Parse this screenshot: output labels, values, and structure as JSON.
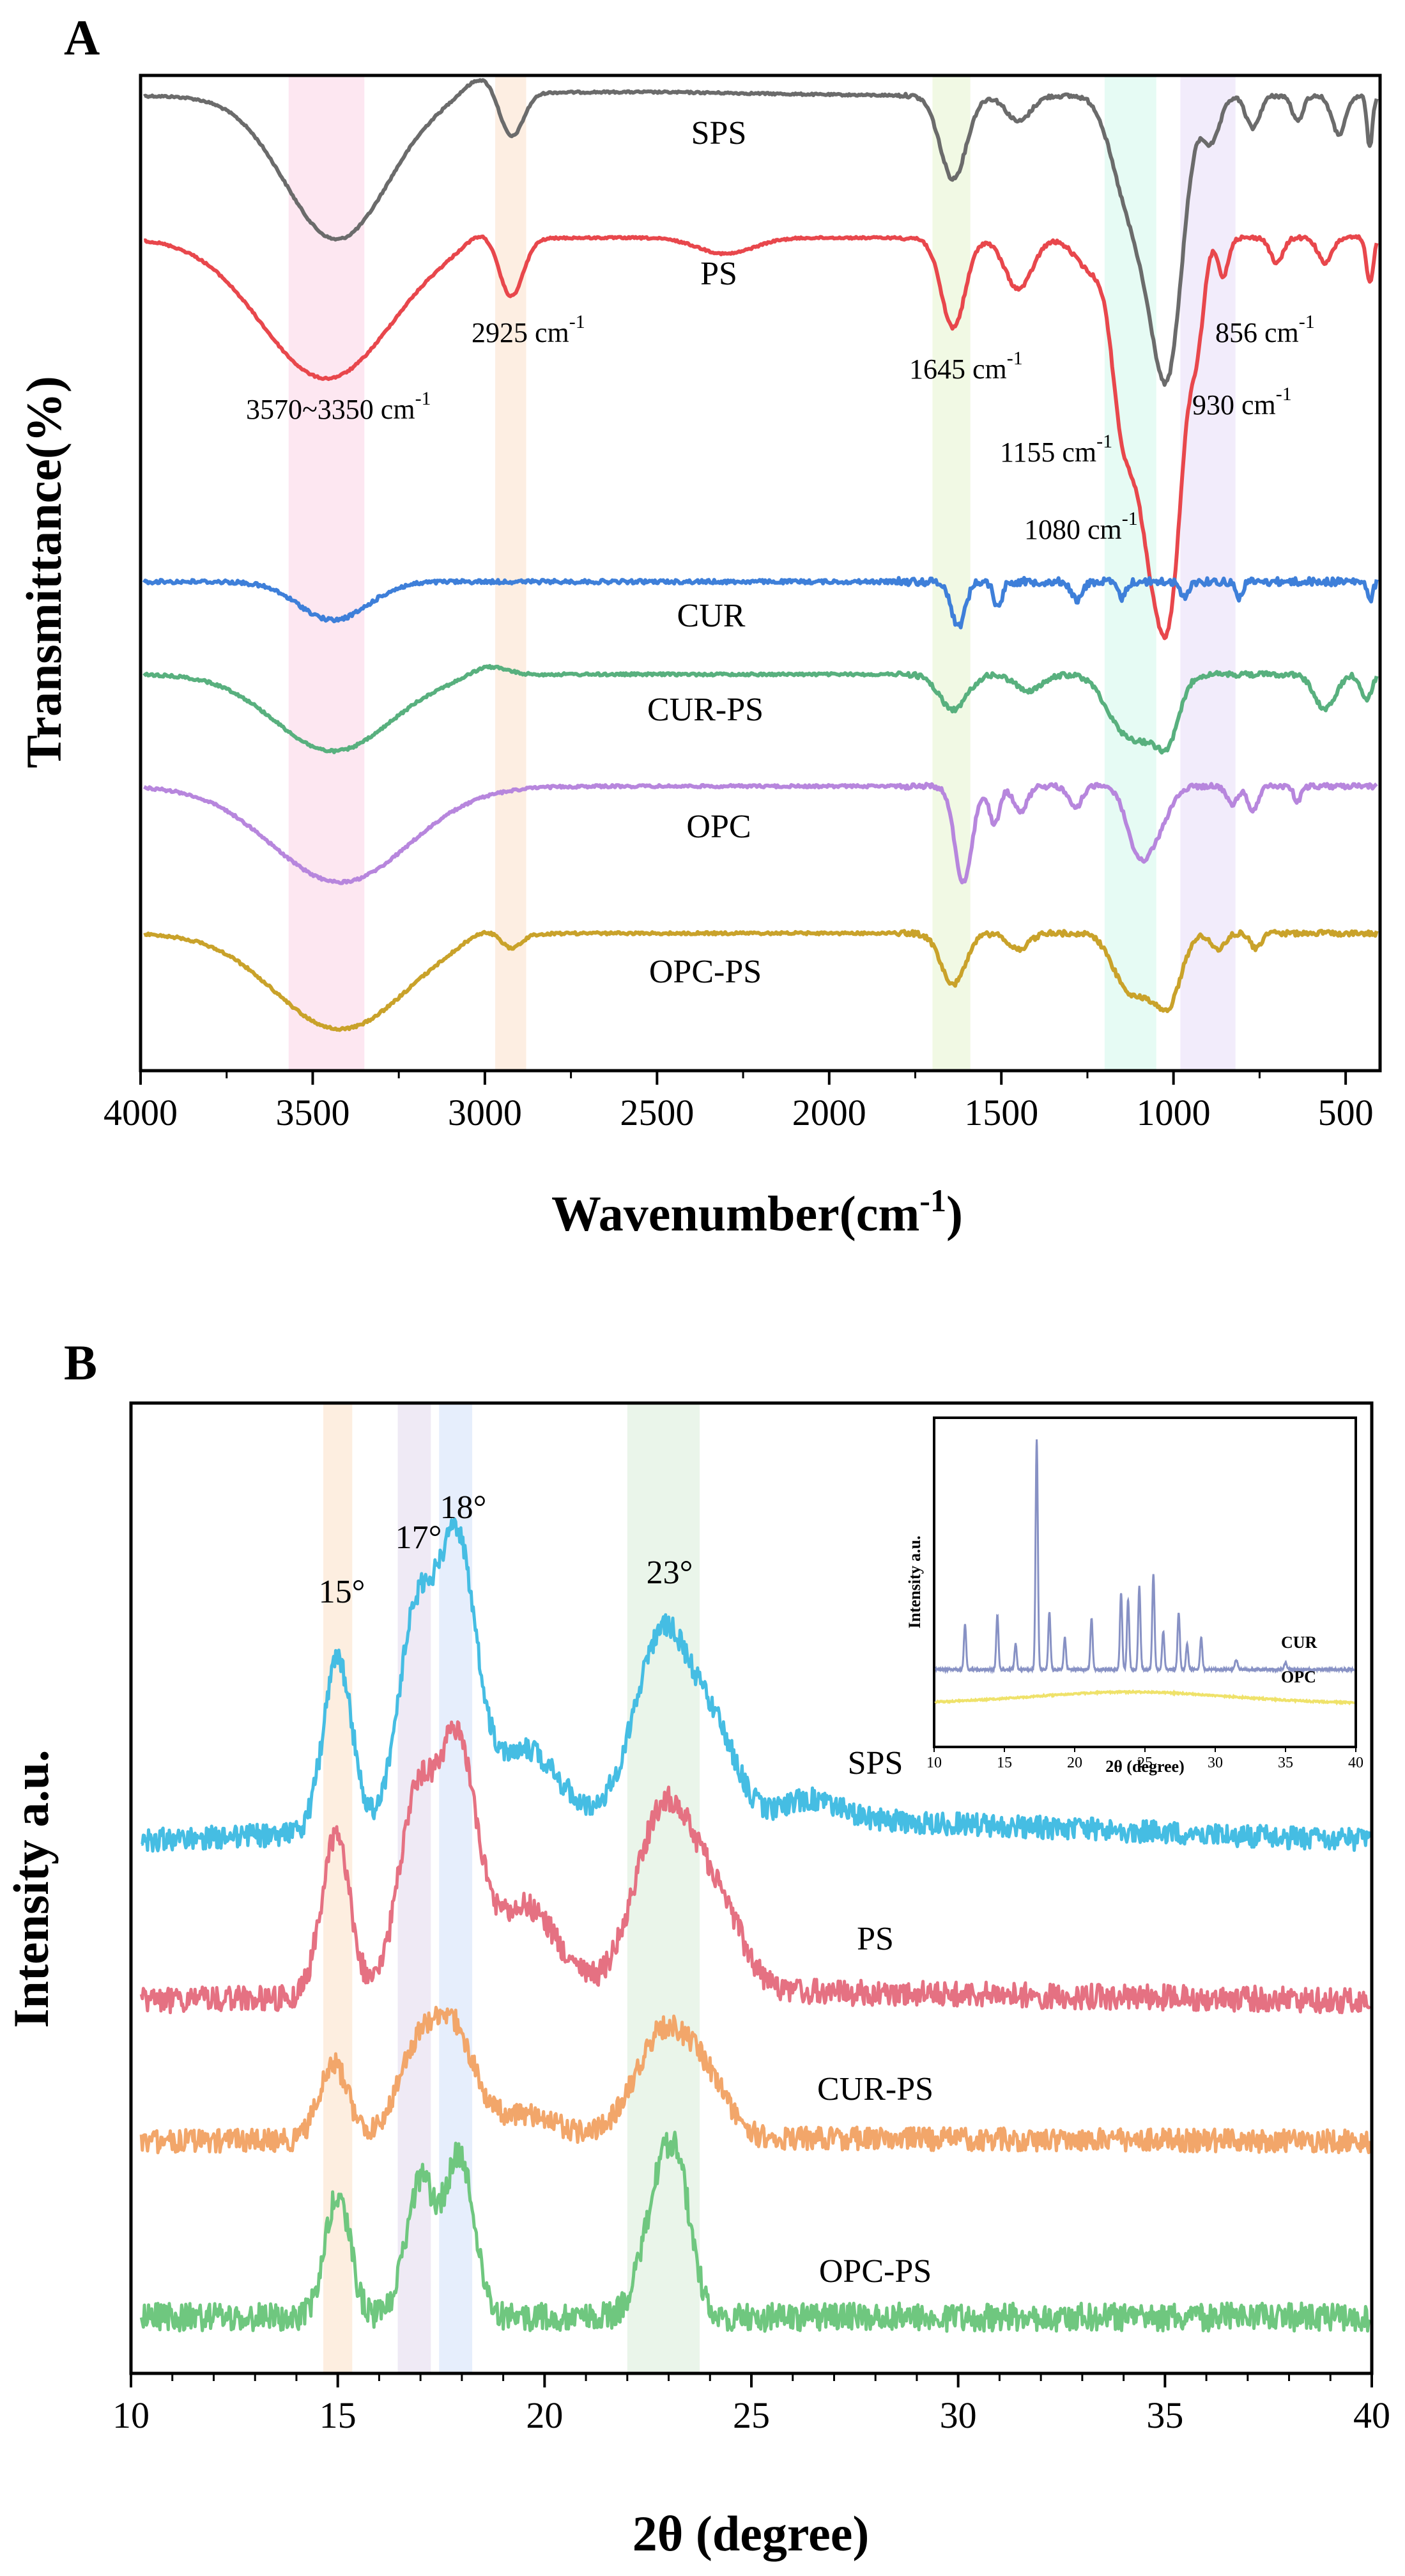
{
  "chart_data": [
    {
      "panel": "A",
      "type": "line",
      "xlabel": "Wavenumber(cm",
      "xlabel_sup": "-1",
      "xlabel_end": ")",
      "ylabel": "Transmittance(%)",
      "xlim": [
        4000,
        400
      ],
      "xticks": [
        "4000",
        "3500",
        "3000",
        "2500",
        "2000",
        "1500",
        "1000",
        "500"
      ],
      "xtick_values": [
        4000,
        3500,
        3000,
        2500,
        2000,
        1500,
        1000,
        500
      ],
      "bands": [
        {
          "from": 3570,
          "to": 3350,
          "color": "#fde7f1"
        },
        {
          "from": 2970,
          "to": 2880,
          "color": "#fdeee2"
        },
        {
          "from": 1700,
          "to": 1590,
          "color": "#f1f9e4"
        },
        {
          "from": 1200,
          "to": 1050,
          "color": "#e6fbf4"
        },
        {
          "from": 980,
          "to": 820,
          "color": "#f2ecfb"
        }
      ],
      "series": [
        {
          "name": "SPS",
          "color": "#6b6b6b"
        },
        {
          "name": "PS",
          "color": "#e8474c"
        },
        {
          "name": "CUR",
          "color": "#3e7fd9"
        },
        {
          "name": "CUR-PS",
          "color": "#58b07e"
        },
        {
          "name": "OPC",
          "color": "#b786dd"
        },
        {
          "name": "OPC-PS",
          "color": "#c9a22a"
        }
      ],
      "annotations": [
        {
          "text": "2925 cm",
          "sup": "-1"
        },
        {
          "text": "3570~3350 cm",
          "sup": "-1"
        },
        {
          "text": "1645 cm",
          "sup": "-1"
        },
        {
          "text": "856 cm",
          "sup": "-1"
        },
        {
          "text": "930 cm",
          "sup": "-1"
        },
        {
          "text": "1155 cm",
          "sup": "-1"
        },
        {
          "text": "1080 cm",
          "sup": "-1"
        }
      ]
    },
    {
      "panel": "B",
      "type": "line",
      "xlabel": "2θ (degree)",
      "ylabel": "Intensity a.u.",
      "xlim": [
        10,
        40
      ],
      "xticks": [
        "10",
        "15",
        "20",
        "25",
        "30",
        "35",
        "40"
      ],
      "xtick_values": [
        10,
        15,
        20,
        25,
        30,
        35,
        40
      ],
      "bands": [
        {
          "from": 14.65,
          "to": 15.35,
          "color": "#fdeee0"
        },
        {
          "from": 16.45,
          "to": 17.25,
          "color": "#efeaf5"
        },
        {
          "from": 17.45,
          "to": 18.25,
          "color": "#e6eefc"
        },
        {
          "from": 22.0,
          "to": 23.75,
          "color": "#eaf5ea"
        }
      ],
      "peak_labels": [
        "15°",
        "17°",
        "18°",
        "23°"
      ],
      "series": [
        {
          "name": "SPS",
          "color": "#45bde3"
        },
        {
          "name": "PS",
          "color": "#e57182"
        },
        {
          "name": "CUR-PS",
          "color": "#f2a66a"
        },
        {
          "name": "OPC-PS",
          "color": "#6fc77f"
        }
      ],
      "inset": {
        "xlabel": "2θ (degree)",
        "ylabel": "Intensity a.u.",
        "xticks": [
          "10",
          "15",
          "20",
          "25",
          "30",
          "35",
          "40"
        ],
        "series": [
          {
            "name": "CUR",
            "color": "#8791c4"
          },
          {
            "name": "OPC",
            "color": "#efe26a"
          }
        ]
      }
    }
  ]
}
